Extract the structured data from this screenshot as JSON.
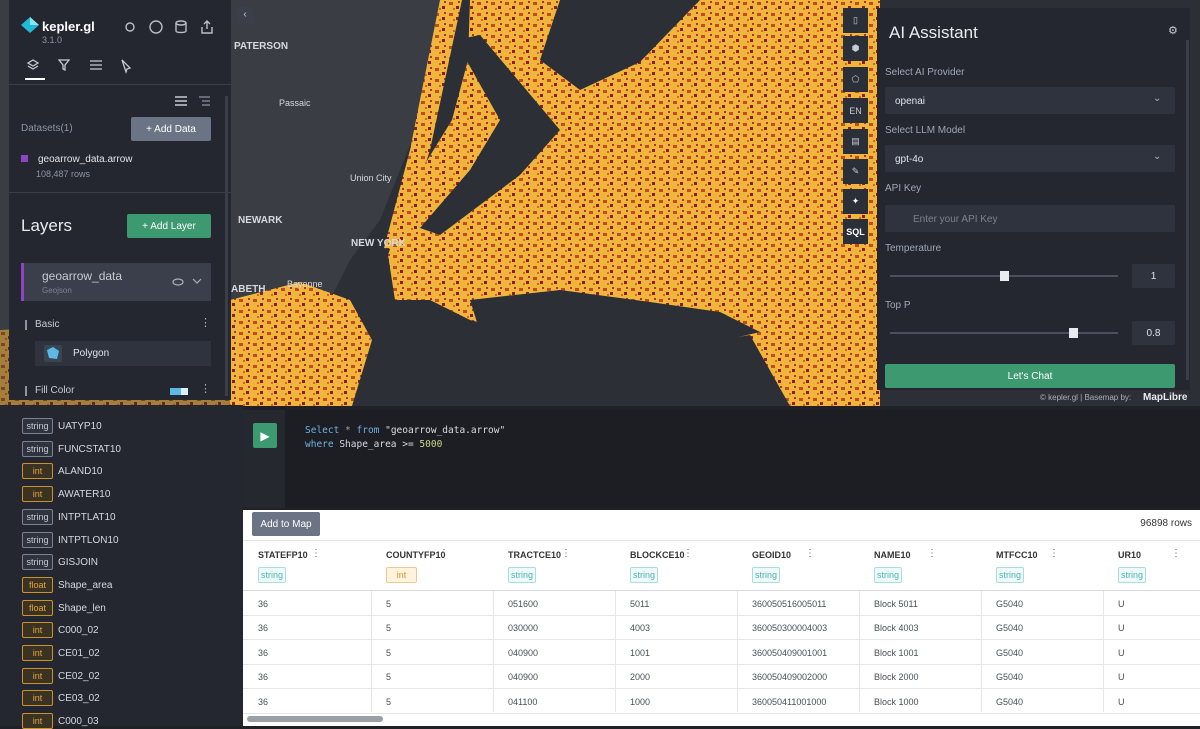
{
  "app": {
    "logo": "kepler.gl",
    "version": "3.1.0"
  },
  "datasets": {
    "label": "Datasets(1)",
    "add_button": "+  Add Data",
    "items": [
      {
        "name": "geoarrow_data.arrow",
        "rows": "108,487 rows"
      }
    ]
  },
  "layers": {
    "title": "Layers",
    "add_button": "+  Add Layer",
    "items": [
      {
        "name": "geoarrow_data",
        "type": "Geojson"
      }
    ],
    "sections": [
      "Basic",
      "Fill Color"
    ],
    "layer_type": "Polygon"
  },
  "map_labels": [
    "PATERSON",
    "Passaic",
    "Union City",
    "NEWARK",
    "NEW YORK",
    "Bayonne",
    "ABETH"
  ],
  "map_controls": [
    "EN",
    "SQL"
  ],
  "ai_assistant": {
    "title": "AI Assistant",
    "provider_label": "Select AI Provider",
    "provider": "openai",
    "model_label": "Select LLM Model",
    "model": "gpt-4o",
    "api_key_label": "API Key",
    "api_key_placeholder": "Enter your API Key",
    "temperature_label": "Temperature",
    "temperature": "1",
    "top_p_label": "Top P",
    "top_p": "0.8",
    "button": "Let's Chat"
  },
  "attribution": {
    "text": "© kepler.gl | Basemap by:",
    "brand": "MapLibre"
  },
  "schema": [
    {
      "type": "string",
      "name": "UATYP10"
    },
    {
      "type": "string",
      "name": "FUNCSTAT10"
    },
    {
      "type": "int",
      "name": "ALAND10"
    },
    {
      "type": "int",
      "name": "AWATER10"
    },
    {
      "type": "string",
      "name": "INTPTLAT10"
    },
    {
      "type": "string",
      "name": "INTPTLON10"
    },
    {
      "type": "string",
      "name": "GISJOIN"
    },
    {
      "type": "float",
      "name": "Shape_area"
    },
    {
      "type": "float",
      "name": "Shape_len"
    },
    {
      "type": "int",
      "name": "C000_02"
    },
    {
      "type": "int",
      "name": "CE01_02"
    },
    {
      "type": "int",
      "name": "CE02_02"
    },
    {
      "type": "int",
      "name": "CE03_02"
    },
    {
      "type": "int",
      "name": "C000_03"
    }
  ],
  "sql": {
    "lines": [
      [
        {
          "text": "Select",
          "color": "#6fb1e4"
        },
        {
          "text": " * ",
          "color": "#9aa3ad"
        },
        {
          "text": "from",
          "color": "#6fb1e4"
        },
        {
          "text": " \"geoarrow_data.arrow\"",
          "color": "#d8dde3"
        }
      ],
      [
        {
          "text": "where",
          "color": "#6fb1e4"
        },
        {
          "text": " Shape_area >= ",
          "color": "#d8dde3"
        },
        {
          "text": "5000",
          "color": "#c7d98a"
        }
      ]
    ]
  },
  "results": {
    "add_button": "Add to Map",
    "row_count": "96898 rows",
    "columns": [
      {
        "name": "STATEFP10",
        "type": "string"
      },
      {
        "name": "COUNTYFP10",
        "type": "int"
      },
      {
        "name": "TRACTCE10",
        "type": "string"
      },
      {
        "name": "BLOCKCE10",
        "type": "string"
      },
      {
        "name": "GEOID10",
        "type": "string"
      },
      {
        "name": "NAME10",
        "type": "string"
      },
      {
        "name": "MTFCC10",
        "type": "string"
      },
      {
        "name": "UR10",
        "type": "string"
      }
    ],
    "rows": [
      [
        "36",
        "5",
        "051600",
        "5011",
        "360050516005011",
        "Block 5011",
        "G5040",
        "U"
      ],
      [
        "36",
        "5",
        "030000",
        "4003",
        "360050300004003",
        "Block 4003",
        "G5040",
        "U"
      ],
      [
        "36",
        "5",
        "040900",
        "1001",
        "360050409001001",
        "Block 1001",
        "G5040",
        "U"
      ],
      [
        "36",
        "5",
        "040900",
        "2000",
        "360050409002000",
        "Block 2000",
        "G5040",
        "U"
      ],
      [
        "36",
        "5",
        "041100",
        "1000",
        "360050411001000",
        "Block 1000",
        "G5040",
        "U"
      ]
    ]
  }
}
